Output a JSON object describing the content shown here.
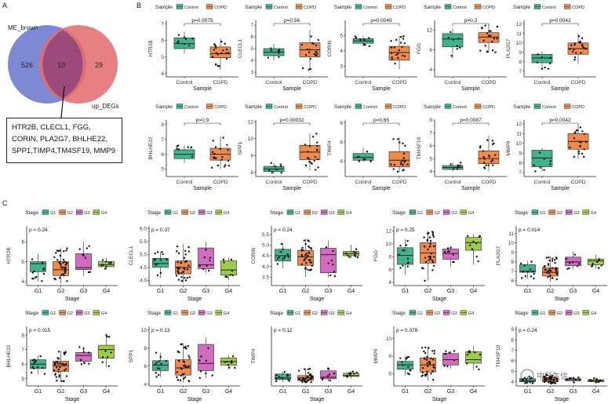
{
  "figure": {
    "panel_labels": [
      "A",
      "B",
      "C"
    ],
    "venn": {
      "left_label": "ME_brown",
      "right_label": "up_DEGs",
      "left_only": "526",
      "overlap": "10",
      "right_only": "29",
      "gene_lines": [
        "HTR2B, CLECL1, FGG,",
        "CORIN, PLA2G7, BHLHE22,",
        "SPP1,TIMP4,TM4SF19, MMP9"
      ],
      "left_color": "#6f7ccf",
      "right_color": "#e36b6b",
      "overlap_color": "#9c4a7a"
    },
    "watermark": "中科生信"
  },
  "chart_data": [
    {
      "type": "boxplot",
      "panel": "B",
      "legend_title": "Sample",
      "groups": [
        "Control",
        "COPD"
      ],
      "colors": {
        "Control": "#3fb38c",
        "COPD": "#f08a4b"
      },
      "xlabel": "Sample",
      "plots": [
        {
          "gene": "HTR2B",
          "p": "p=0.0075",
          "ylim": [
            3.8,
            7.2
          ],
          "ticks": [
            4,
            5,
            6,
            7
          ],
          "boxes": [
            {
              "q1": 5.5,
              "med": 5.8,
              "q3": 6.15,
              "lo": 5.2,
              "hi": 6.5
            },
            {
              "q1": 4.95,
              "med": 5.2,
              "q3": 5.6,
              "lo": 4.2,
              "hi": 6.1
            }
          ]
        },
        {
          "gene": "CLECL1",
          "p": "p=0.56",
          "ylim": [
            2.6,
            7.4
          ],
          "ticks": [
            3,
            4,
            5,
            6,
            7
          ],
          "boxes": [
            {
              "q1": 4.4,
              "med": 4.7,
              "q3": 5.0,
              "lo": 4.0,
              "hi": 5.4
            },
            {
              "q1": 4.3,
              "med": 4.9,
              "q3": 5.5,
              "lo": 3.2,
              "hi": 6.6
            }
          ]
        },
        {
          "gene": "CORIN",
          "p": "p=0.0049",
          "ylim": [
            2.3,
            6.0
          ],
          "ticks": [
            3,
            4,
            5
          ],
          "boxes": [
            {
              "q1": 4.5,
              "med": 4.65,
              "q3": 4.8,
              "lo": 4.3,
              "hi": 5.0
            },
            {
              "q1": 3.4,
              "med": 3.9,
              "q3": 4.3,
              "lo": 2.8,
              "hi": 5.0
            }
          ]
        },
        {
          "gene": "FGG",
          "p": "p=0.3",
          "ylim": [
            2.5,
            14.0
          ],
          "ticks": [
            4,
            8,
            12
          ],
          "boxes": [
            {
              "q1": 8.6,
              "med": 10.2,
              "q3": 11.3,
              "lo": 6.2,
              "hi": 12.3
            },
            {
              "q1": 9.5,
              "med": 10.6,
              "q3": 11.5,
              "lo": 7.5,
              "hi": 13.2
            }
          ]
        },
        {
          "gene": "PLA2G7",
          "p": "p=0.0042",
          "ylim": [
            6.4,
            12.4
          ],
          "ticks": [
            7,
            8,
            9,
            10,
            11,
            12
          ],
          "boxes": [
            {
              "q1": 7.9,
              "med": 8.4,
              "q3": 8.8,
              "lo": 7.2,
              "hi": 9.1
            },
            {
              "q1": 8.8,
              "med": 9.4,
              "q3": 10.0,
              "lo": 7.8,
              "hi": 11.0
            }
          ]
        },
        {
          "gene": "BHLHE22",
          "p": "p=0.9",
          "ylim": [
            4.5,
            8.3
          ],
          "ticks": [
            5,
            6,
            7,
            8
          ],
          "boxes": [
            {
              "q1": 5.7,
              "med": 6.0,
              "q3": 6.3,
              "lo": 5.4,
              "hi": 6.6
            },
            {
              "q1": 5.6,
              "med": 6.0,
              "q3": 6.4,
              "lo": 5.0,
              "hi": 7.2
            }
          ]
        },
        {
          "gene": "SPP1",
          "p": "p=0.00032",
          "ylim": [
            5.5,
            12.2
          ],
          "ticks": [
            6,
            8,
            10,
            12
          ],
          "boxes": [
            {
              "q1": 6.1,
              "med": 6.4,
              "q3": 6.7,
              "lo": 5.8,
              "hi": 7.1
            },
            {
              "q1": 7.5,
              "med": 8.4,
              "q3": 9.2,
              "lo": 6.2,
              "hi": 10.6
            }
          ]
        },
        {
          "gene": "TIMP4",
          "p": "p=0.65",
          "ylim": [
            2.4,
            8.3
          ],
          "ticks": [
            4,
            6,
            8
          ],
          "boxes": [
            {
              "q1": 4.1,
              "med": 4.4,
              "q3": 4.8,
              "lo": 3.9,
              "hi": 5.4
            },
            {
              "q1": 3.4,
              "med": 4.1,
              "q3": 5.0,
              "lo": 2.8,
              "hi": 6.5
            }
          ]
        },
        {
          "gene": "TM4SF19",
          "p": "p=0.0087",
          "ylim": [
            3.6,
            8.0
          ],
          "ticks": [
            4,
            5,
            6,
            7,
            8
          ],
          "boxes": [
            {
              "q1": 4.15,
              "med": 4.3,
              "q3": 4.45,
              "lo": 4.0,
              "hi": 4.7
            },
            {
              "q1": 4.6,
              "med": 5.0,
              "q3": 5.6,
              "lo": 4.0,
              "hi": 6.8
            }
          ]
        },
        {
          "gene": "MMP9",
          "p": "p=0.0042",
          "ylim": [
            6.6,
            12.4
          ],
          "ticks": [
            7,
            8,
            9,
            10,
            11,
            12
          ],
          "boxes": [
            {
              "q1": 7.6,
              "med": 8.5,
              "q3": 9.3,
              "lo": 7.1,
              "hi": 9.5
            },
            {
              "q1": 9.4,
              "med": 10.2,
              "q3": 11.0,
              "lo": 8.4,
              "hi": 11.9
            }
          ]
        }
      ]
    },
    {
      "type": "boxplot",
      "panel": "C",
      "legend_title": "Stage",
      "groups": [
        "G1",
        "G2",
        "G3",
        "G4"
      ],
      "colors": {
        "G1": "#3fb38c",
        "G2": "#f08a4b",
        "G3": "#d36bc1",
        "G4": "#9ccd45"
      },
      "xlabel": "Stage",
      "plots": [
        {
          "gene": "HTR2B",
          "p": "p = 0.24",
          "ylim": [
            3.8,
            6.8
          ],
          "ticks": [
            4,
            5,
            6
          ],
          "boxes": [
            {
              "q1": 4.5,
              "med": 4.9,
              "q3": 5.0,
              "lo": 4.0,
              "hi": 5.4
            },
            {
              "q1": 4.3,
              "med": 4.6,
              "q3": 5.0,
              "lo": 3.9,
              "hi": 5.7
            },
            {
              "q1": 4.6,
              "med": 4.7,
              "q3": 5.4,
              "lo": 4.3,
              "hi": 6.0
            },
            {
              "q1": 4.75,
              "med": 4.85,
              "q3": 5.0,
              "lo": 4.6,
              "hi": 5.2
            }
          ]
        },
        {
          "gene": "CLECL1",
          "p": "p = 0.37",
          "ylim": [
            3.8,
            6.1
          ],
          "ticks": [
            4.0,
            4.5,
            5.0,
            5.5,
            6.0
          ],
          "boxes": [
            {
              "q1": 4.5,
              "med": 4.65,
              "q3": 4.85,
              "lo": 4.1,
              "hi": 5.1
            },
            {
              "q1": 4.25,
              "med": 4.5,
              "q3": 4.75,
              "lo": 3.9,
              "hi": 5.4
            },
            {
              "q1": 4.45,
              "med": 4.6,
              "q3": 5.25,
              "lo": 4.3,
              "hi": 5.5
            },
            {
              "q1": 4.2,
              "med": 4.4,
              "q3": 4.75,
              "lo": 4.0,
              "hi": 4.9
            }
          ]
        },
        {
          "gene": "CORIN",
          "p": "p = 0.24",
          "ylim": [
            3.1,
            5.9
          ],
          "ticks": [
            3.5,
            4.0,
            4.5,
            5.0,
            5.5
          ],
          "boxes": [
            {
              "q1": 4.25,
              "med": 4.5,
              "q3": 4.8,
              "lo": 3.9,
              "hi": 5.1
            },
            {
              "q1": 4.05,
              "med": 4.45,
              "q3": 4.75,
              "lo": 3.5,
              "hi": 5.3
            },
            {
              "q1": 3.7,
              "med": 4.55,
              "q3": 4.85,
              "lo": 3.5,
              "hi": 5.2
            },
            {
              "q1": 4.5,
              "med": 4.6,
              "q3": 4.7,
              "lo": 4.4,
              "hi": 5.0
            }
          ]
        },
        {
          "gene": "FGG",
          "p": "p = 0.25",
          "ylim": [
            3.5,
            12.8
          ],
          "ticks": [
            4,
            6,
            8,
            10,
            12
          ],
          "boxes": [
            {
              "q1": 6.8,
              "med": 8.2,
              "q3": 9.4,
              "lo": 5.2,
              "hi": 10.8
            },
            {
              "q1": 7.0,
              "med": 8.6,
              "q3": 10.2,
              "lo": 4.2,
              "hi": 12.0
            },
            {
              "q1": 7.6,
              "med": 8.5,
              "q3": 9.2,
              "lo": 6.4,
              "hi": 9.6
            },
            {
              "q1": 9.0,
              "med": 10.2,
              "q3": 11.0,
              "lo": 6.8,
              "hi": 11.5
            }
          ]
        },
        {
          "gene": "PLA2G7",
          "p": "p = 0.014",
          "ylim": [
            5.5,
            11.8
          ],
          "ticks": [
            6,
            7,
            8,
            9,
            10,
            11
          ],
          "boxes": [
            {
              "q1": 6.9,
              "med": 7.0,
              "q3": 7.7,
              "lo": 6.2,
              "hi": 8.1
            },
            {
              "q1": 6.5,
              "med": 6.9,
              "q3": 7.4,
              "lo": 5.9,
              "hi": 8.6
            },
            {
              "q1": 7.6,
              "med": 8.0,
              "q3": 8.5,
              "lo": 7.2,
              "hi": 9.1
            },
            {
              "q1": 7.7,
              "med": 8.1,
              "q3": 8.3,
              "lo": 7.3,
              "hi": 8.8
            }
          ]
        },
        {
          "gene": "BHLHE22",
          "p": "p = 0.015",
          "ylim": [
            4.5,
            8.6
          ],
          "ticks": [
            5,
            6,
            7,
            8
          ],
          "boxes": [
            {
              "q1": 5.7,
              "med": 6.0,
              "q3": 6.3,
              "lo": 5.3,
              "hi": 6.6
            },
            {
              "q1": 5.5,
              "med": 5.9,
              "q3": 6.2,
              "lo": 4.8,
              "hi": 6.9
            },
            {
              "q1": 6.2,
              "med": 6.6,
              "q3": 6.8,
              "lo": 6.0,
              "hi": 7.2
            },
            {
              "q1": 6.4,
              "med": 7.0,
              "q3": 7.3,
              "lo": 5.8,
              "hi": 8.1
            }
          ]
        },
        {
          "gene": "SPP1",
          "p": "p = 0.13",
          "ylim": [
            3.8,
            10.4
          ],
          "ticks": [
            4,
            6,
            8,
            10
          ],
          "boxes": [
            {
              "q1": 5.5,
              "med": 6.1,
              "q3": 6.6,
              "lo": 4.8,
              "hi": 7.5
            },
            {
              "q1": 5.0,
              "med": 5.8,
              "q3": 6.7,
              "lo": 4.2,
              "hi": 8.5
            },
            {
              "q1": 5.5,
              "med": 6.3,
              "q3": 8.4,
              "lo": 4.6,
              "hi": 9.2
            },
            {
              "q1": 6.1,
              "med": 6.5,
              "q3": 6.9,
              "lo": 5.7,
              "hi": 7.2
            }
          ]
        },
        {
          "gene": "TIMP4",
          "p": "p = 0.12",
          "ylim": [
            2.7,
            10.2
          ],
          "ticks": [],
          "boxes": [
            {
              "q1": 3.5,
              "med": 3.7,
              "q3": 4.2,
              "lo": 3.2,
              "hi": 4.5
            },
            {
              "q1": 3.4,
              "med": 3.7,
              "q3": 4.0,
              "lo": 3.1,
              "hi": 4.9
            },
            {
              "q1": 3.6,
              "med": 3.8,
              "q3": 4.6,
              "lo": 3.3,
              "hi": 5.0
            },
            {
              "q1": 3.9,
              "med": 4.0,
              "q3": 4.3,
              "lo": 3.6,
              "hi": 4.6
            }
          ]
        },
        {
          "gene": "MMP9",
          "p": "p = 0.078",
          "ylim": [
            4.6,
            11.4
          ],
          "ticks": [
            6,
            8,
            10
          ],
          "boxes": [
            {
              "q1": 6.5,
              "med": 7.0,
              "q3": 7.4,
              "lo": 5.8,
              "hi": 8.0
            },
            {
              "q1": 6.2,
              "med": 7.0,
              "q3": 7.8,
              "lo": 5.2,
              "hi": 9.0
            },
            {
              "q1": 7.0,
              "med": 7.6,
              "q3": 8.3,
              "lo": 6.6,
              "hi": 8.6
            },
            {
              "q1": 7.2,
              "med": 7.6,
              "q3": 8.5,
              "lo": 6.4,
              "hi": 9.2
            }
          ]
        },
        {
          "gene": "TM4SF19",
          "p": "p = 0.24",
          "ylim": [
            3.6,
            9.3
          ],
          "ticks": [
            4,
            5,
            6,
            7,
            8,
            9
          ],
          "boxes": [
            {
              "q1": 4.0,
              "med": 4.1,
              "q3": 4.3,
              "lo": 3.8,
              "hi": 4.5
            },
            {
              "q1": 4.0,
              "med": 4.2,
              "q3": 4.4,
              "lo": 3.8,
              "hi": 4.7
            },
            {
              "q1": 4.1,
              "med": 4.2,
              "q3": 4.3,
              "lo": 3.9,
              "hi": 4.5
            },
            {
              "q1": 4.0,
              "med": 4.1,
              "q3": 4.2,
              "lo": 3.9,
              "hi": 4.4
            }
          ]
        }
      ]
    }
  ]
}
